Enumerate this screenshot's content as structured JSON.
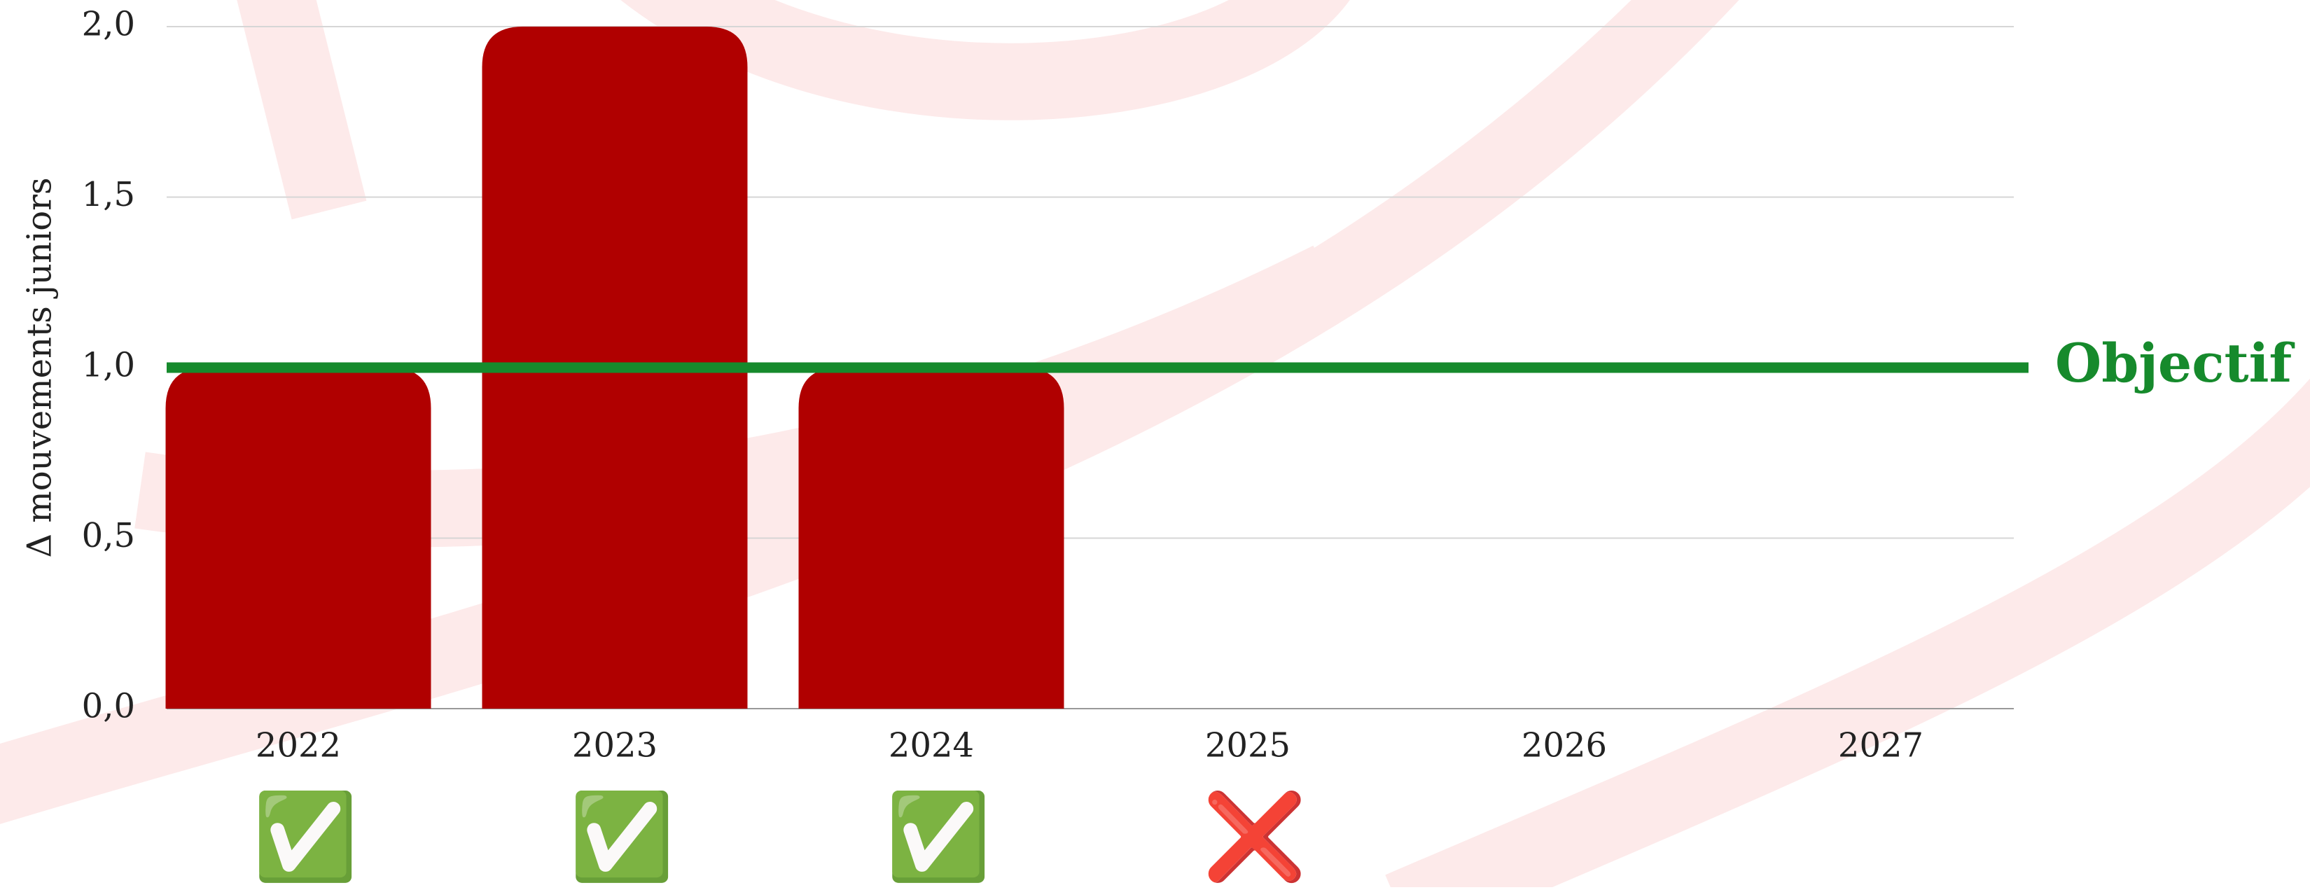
{
  "chart_data": {
    "type": "bar",
    "y_axis_label": "Δ mouvements juniors",
    "categories": [
      "2022",
      "2023",
      "2024",
      "2025",
      "2026",
      "2027"
    ],
    "values": [
      1,
      2,
      1,
      0,
      null,
      null
    ],
    "color": "#b00000",
    "status_icons": [
      "✅",
      "✅",
      "✅",
      "❌",
      null,
      null
    ],
    "ylim": [
      0,
      2
    ],
    "yticks": [
      {
        "value": 0,
        "label": "0,0"
      },
      {
        "value": 0.5,
        "label": "0,5"
      },
      {
        "value": 1,
        "label": "1,0"
      },
      {
        "value": 1.5,
        "label": "1,5"
      },
      {
        "value": 2,
        "label": "2,0"
      }
    ],
    "grid": true,
    "target": {
      "value": 1,
      "label": "Objectif",
      "color": "#168a2c"
    }
  }
}
